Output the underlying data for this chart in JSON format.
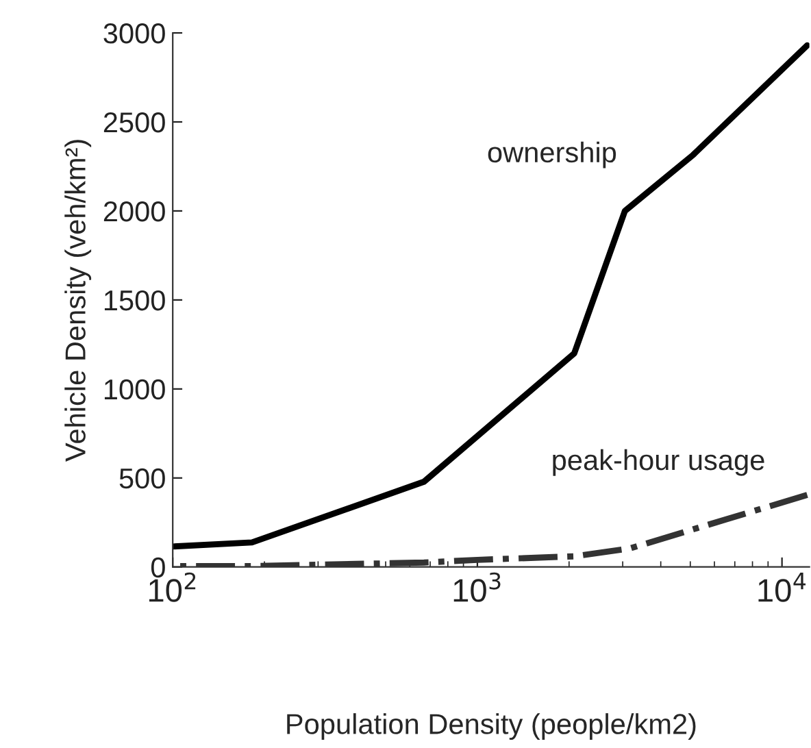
{
  "chart_data": {
    "type": "line",
    "xlabel": "Population Density (people/km2)",
    "ylabel": "Vehicle Density (veh/km²)",
    "log": "x",
    "x": [
      100,
      182,
      668,
      2080,
      3050,
      5110,
      12100
    ],
    "series": [
      {
        "name": "ownership",
        "color": "#000000",
        "line_style": "solid",
        "values": [
          115,
          138,
          479,
          1200,
          2000,
          2315,
          2930
        ]
      },
      {
        "name": "peak-hour usage",
        "color": "#333333",
        "line_style": "dashdot",
        "x": [
          100,
          182,
          668,
          1000,
          2080,
          3180,
          4850,
          12100
        ],
        "values": [
          5,
          5,
          25,
          40,
          60,
          105,
          200,
          405
        ]
      }
    ],
    "xlim": [
      100,
      12300
    ],
    "xticks": [
      {
        "value": 100,
        "label": "10$^{2}$"
      },
      {
        "value": 1000,
        "label": "10$^{3}$"
      },
      {
        "value": 10000,
        "label": "10$^{4}$"
      }
    ],
    "ylim": [
      0,
      3000
    ],
    "yticks": [
      0,
      500,
      1000,
      1500,
      2000,
      2500,
      3000
    ],
    "grid": false,
    "legend": false
  }
}
